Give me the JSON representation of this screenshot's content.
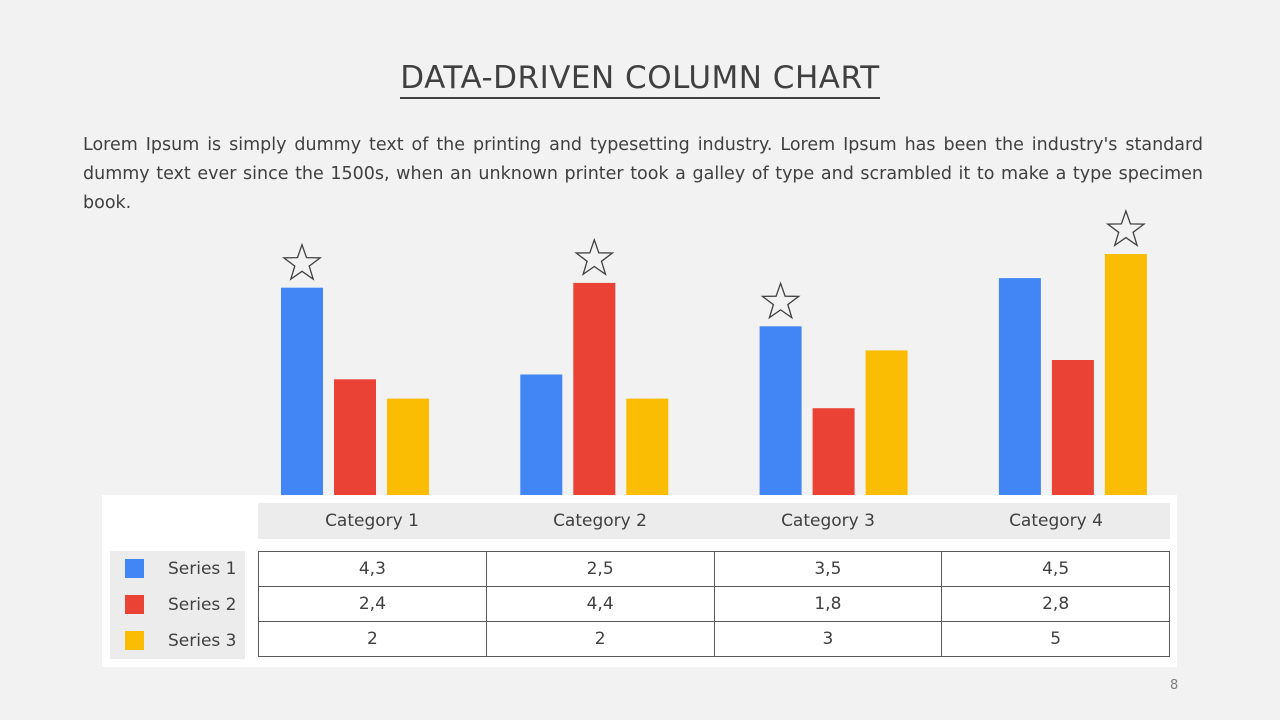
{
  "slide": {
    "title": "DATA-DRIVEN COLUMN CHART",
    "description": "Lorem Ipsum is simply dummy text of the printing and typesetting industry. Lorem Ipsum has been the industry's standard dummy text ever since the 1500s, when an unknown printer took a galley of type and scrambled it to make a type specimen book.",
    "page_number": "8"
  },
  "chart_data": {
    "type": "bar",
    "categories": [
      "Category 1",
      "Category 2",
      "Category 3",
      "Category 4"
    ],
    "series": [
      {
        "name": "Series 1",
        "color": "#4285f4",
        "values": [
          4.3,
          2.5,
          3.5,
          4.5
        ]
      },
      {
        "name": "Series 2",
        "color": "#ea4335",
        "values": [
          2.4,
          4.4,
          1.8,
          2.8
        ]
      },
      {
        "name": "Series 3",
        "color": "#fbbc04",
        "values": [
          2,
          2,
          3,
          5
        ]
      }
    ],
    "ylim": [
      0,
      5
    ],
    "grid": false,
    "highlight_marker": "star-icon",
    "highlight_series_index": [
      0,
      1,
      0,
      2
    ]
  },
  "table": {
    "rows": [
      {
        "label": "Series 1",
        "cells": [
          "4,3",
          "2,5",
          "3,5",
          "4,5"
        ]
      },
      {
        "label": "Series 2",
        "cells": [
          "2,4",
          "4,4",
          "1,8",
          "2,8"
        ]
      },
      {
        "label": "Series 3",
        "cells": [
          "2",
          "2",
          "3",
          "5"
        ]
      }
    ]
  }
}
